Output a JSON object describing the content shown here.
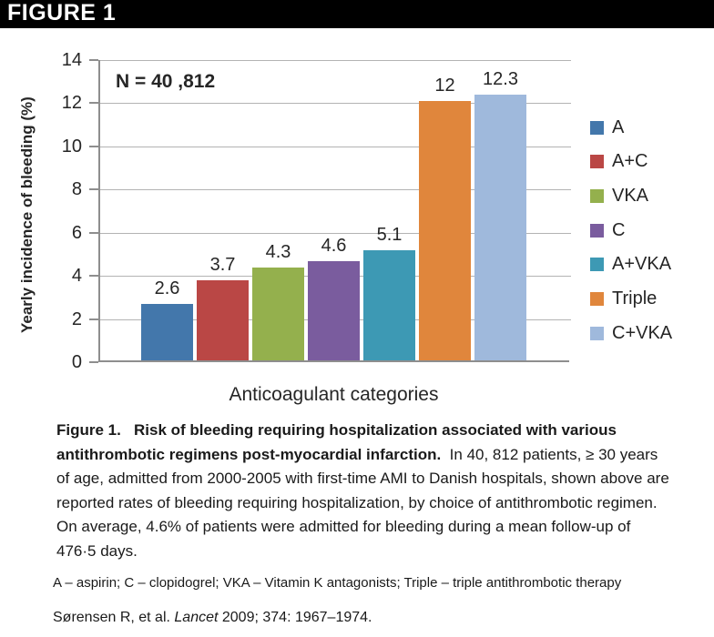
{
  "banner": {
    "label": "FIGURE 1"
  },
  "chart_data": {
    "type": "bar",
    "annotation": "N = 40 ,812",
    "xlabel": "Anticoagulant categories",
    "ylabel": "Yearly incidence of bleeding (%)",
    "ylim": [
      0,
      14
    ],
    "ytick_step": 2,
    "grid": true,
    "legend_position": "right",
    "categories": [
      "A",
      "A+C",
      "VKA",
      "C",
      "A+VKA",
      "Triple",
      "C+VKA"
    ],
    "values": [
      2.6,
      3.7,
      4.3,
      4.6,
      5.1,
      12,
      12.3
    ],
    "value_labels": [
      "2.6",
      "3.7",
      "4.3",
      "4.6",
      "5.1",
      "12",
      "12.3"
    ],
    "colors": [
      "#4377AB",
      "#BA4745",
      "#94B04D",
      "#7A5C9E",
      "#3D99B4",
      "#E0863C",
      "#9FB9DC"
    ],
    "axis_color": "#8E8E8E",
    "gridline_color": "#B3B3B3"
  },
  "caption": {
    "bold": "Figure 1.   Risk of bleeding requiring hospitalization associated with various antithrombotic regimens post-myocardial infarction.",
    "body": "  In 40, 812 patients, ≥ 30 years of age, admitted from 2000-2005 with first-time AMI to Danish hospitals, shown above are reported rates of bleeding requiring hospitalization, by choice of antithrombotic regimen.  On average, 4.6% of patients were admitted for bleeding during a mean follow-up of 476·5 days."
  },
  "footnote": "A – aspirin;  C – clopidogrel; VKA – Vitamin K antagonists; Triple – triple antithrombotic therapy",
  "citation": {
    "pre": "Sørensen R, et al. ",
    "italic": "Lancet",
    "post": " 2009; 374: 1967–1974."
  }
}
